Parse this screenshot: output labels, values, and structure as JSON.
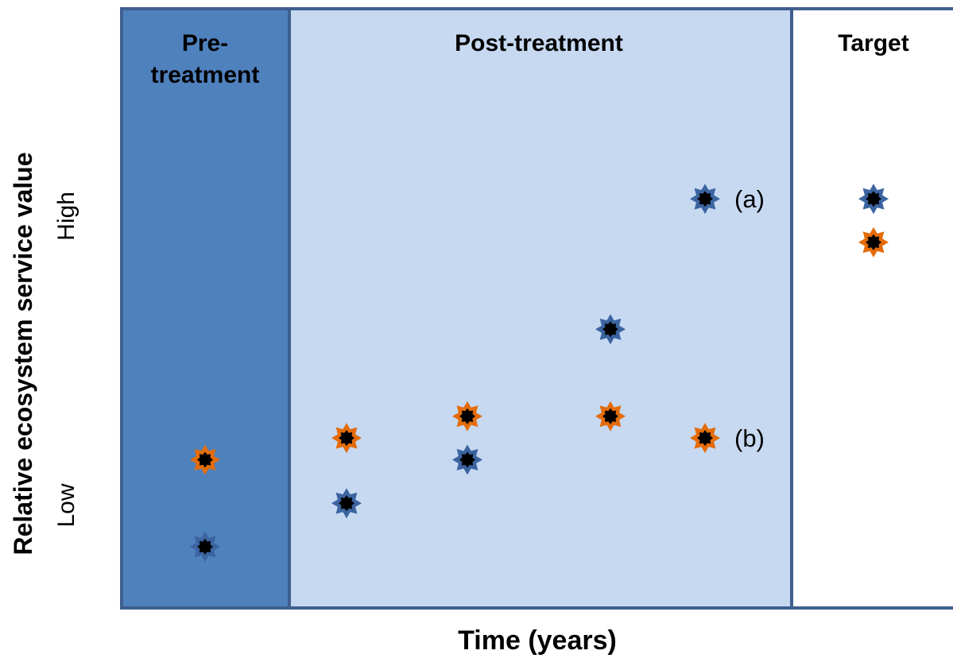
{
  "chart_data": {
    "type": "scatter",
    "title": "",
    "xlabel": "Time (years)",
    "ylabel": "Relative ecosystem service value",
    "ylabel_high": "High",
    "ylabel_low": "Low",
    "ylim": [
      0,
      10
    ],
    "grid": false,
    "legend": "none",
    "panels": [
      {
        "id": "pre",
        "label_line1": "Pre-",
        "label_line2": "treatment",
        "fill": "#4f81bd"
      },
      {
        "id": "post",
        "label": "Post-treatment",
        "fill": "#c6d9f1"
      },
      {
        "id": "target",
        "label": "Target",
        "fill": "#ffffff"
      }
    ],
    "colors": {
      "series_a": "#3b64a0",
      "series_b": "#e46c0a",
      "marker_center": "#000000",
      "frame": "#3f5f8f"
    },
    "series": [
      {
        "points": [
          {
            "period": "pre",
            "step": 0,
            "y": 1.2
          },
          {
            "period": "post",
            "step": 1,
            "y": 2.0
          },
          {
            "period": "post",
            "step": 2,
            "y": 2.8
          },
          {
            "period": "post",
            "step": 3,
            "y": 5.2
          },
          {
            "period": "post",
            "step": 4,
            "y": 7.6,
            "annotation": "(a)"
          },
          {
            "period": "target",
            "step": 5,
            "y": 7.6
          }
        ]
      },
      {
        "points": [
          {
            "period": "pre",
            "step": 0,
            "y": 2.8
          },
          {
            "period": "post",
            "step": 1,
            "y": 3.2
          },
          {
            "period": "post",
            "step": 2,
            "y": 3.6
          },
          {
            "period": "post",
            "step": 3,
            "y": 3.6
          },
          {
            "period": "post",
            "step": 4,
            "y": 3.2,
            "annotation": "(b)"
          },
          {
            "period": "target",
            "step": 5,
            "y": 6.8
          }
        ]
      }
    ]
  }
}
